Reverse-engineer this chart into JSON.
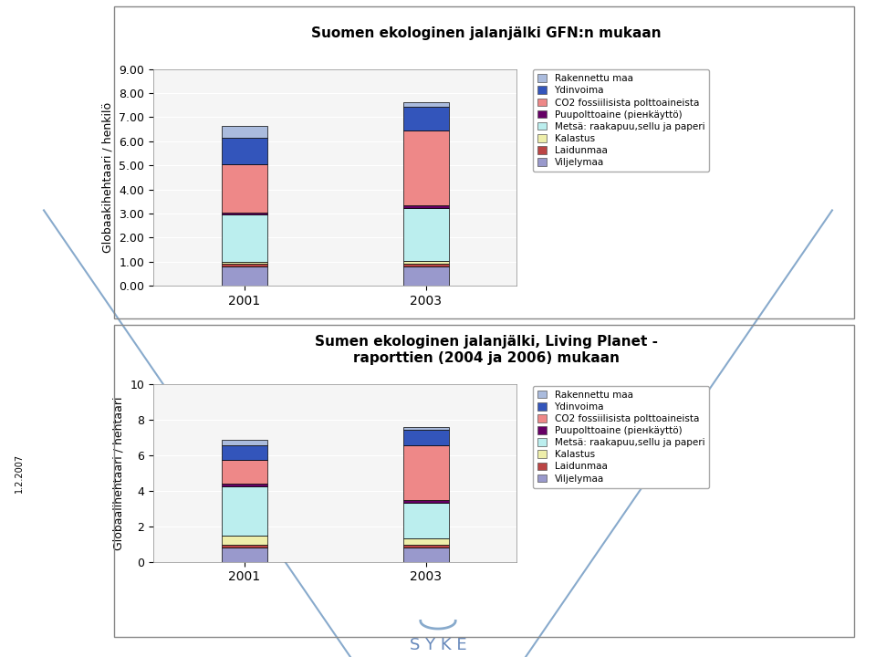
{
  "chart1": {
    "title": "Suomen ekologinen jalanjälki GFN:n mukaan",
    "ylabel": "Globaakihehtaari / henkilö",
    "years": [
      "2001",
      "2003"
    ],
    "ylim": [
      0,
      9.0
    ],
    "yticks": [
      0.0,
      1.0,
      2.0,
      3.0,
      4.0,
      5.0,
      6.0,
      7.0,
      8.0,
      9.0
    ],
    "ytick_labels": [
      "0.00",
      "1.00",
      "2.00",
      "3.00",
      "4.00",
      "5.00",
      "6.00",
      "7.00",
      "8.00",
      "9.00"
    ],
    "data": {
      "Viljelymaa": [
        0.82,
        0.82
      ],
      "Laidunmaa": [
        0.08,
        0.08
      ],
      "Kalastus": [
        0.1,
        0.12
      ],
      "Metsä: raakapuu,sellu ja paperi": [
        1.95,
        2.2
      ],
      "Puupolttoaine (piенkäyttö)": [
        0.1,
        0.12
      ],
      "CO2 fossiilisista polttoaineista": [
        2.0,
        3.1
      ],
      "Ydinvoima": [
        1.1,
        1.0
      ],
      "Rakennettu maa": [
        0.47,
        0.18
      ]
    }
  },
  "chart2": {
    "title": "Sumen ekologinen jalanjälki, Living Planet -\nraporttien (2004 ja 2006) mukaan",
    "ylabel": "Globaalihehtaari / hehtaari",
    "years": [
      "2001",
      "2003"
    ],
    "ylim": [
      0,
      10
    ],
    "yticks": [
      0,
      2,
      4,
      6,
      8,
      10
    ],
    "ytick_labels": [
      "0",
      "2",
      "4",
      "6",
      "8",
      "10"
    ],
    "data": {
      "Viljelymaa": [
        0.82,
        0.82
      ],
      "Laidunmaa": [
        0.15,
        0.15
      ],
      "Kalastus": [
        0.5,
        0.35
      ],
      "Metsä: raakapuu,sellu ja paperi": [
        2.8,
        2.0
      ],
      "Puupolttoaine (piенkäyttö)": [
        0.15,
        0.15
      ],
      "CO2 fossiilisista polttoaineista": [
        1.3,
        3.1
      ],
      "Ydinvoima": [
        0.85,
        0.85
      ],
      "Rakennettu maa": [
        0.3,
        0.18
      ]
    }
  },
  "categories": [
    "Viljelymaa",
    "Laidunmaa",
    "Kalastus",
    "Metsä: raakapuu,sellu ja paperi",
    "Puupolttoaine (piенkäyttö)",
    "CO2 fossiilisista polttoaineista",
    "Ydinvoima",
    "Rakennettu maa"
  ],
  "colors": [
    "#9999cc",
    "#bb4444",
    "#eeeeaa",
    "#bbeeee",
    "#660066",
    "#ee8888",
    "#3355bb",
    "#aabbdd"
  ],
  "legend_labels": [
    "Rakennettu maa",
    "Ydinvoima",
    "CO2 fossiilisista polttoaineista",
    "Puupolttoaine (piенkäyttö)",
    "Metsä: raakapuu,sellu ja paperi",
    "Kalastus",
    "Laidunmaa",
    "Viljelymaa"
  ],
  "legend_colors": [
    "#aabbdd",
    "#3355bb",
    "#ee8888",
    "#660066",
    "#bbeeee",
    "#eeeeaa",
    "#bb4444",
    "#9999cc"
  ],
  "bg_color": "#ffffff",
  "date_text": "1.2.2007",
  "syke_text": "S Y K E"
}
